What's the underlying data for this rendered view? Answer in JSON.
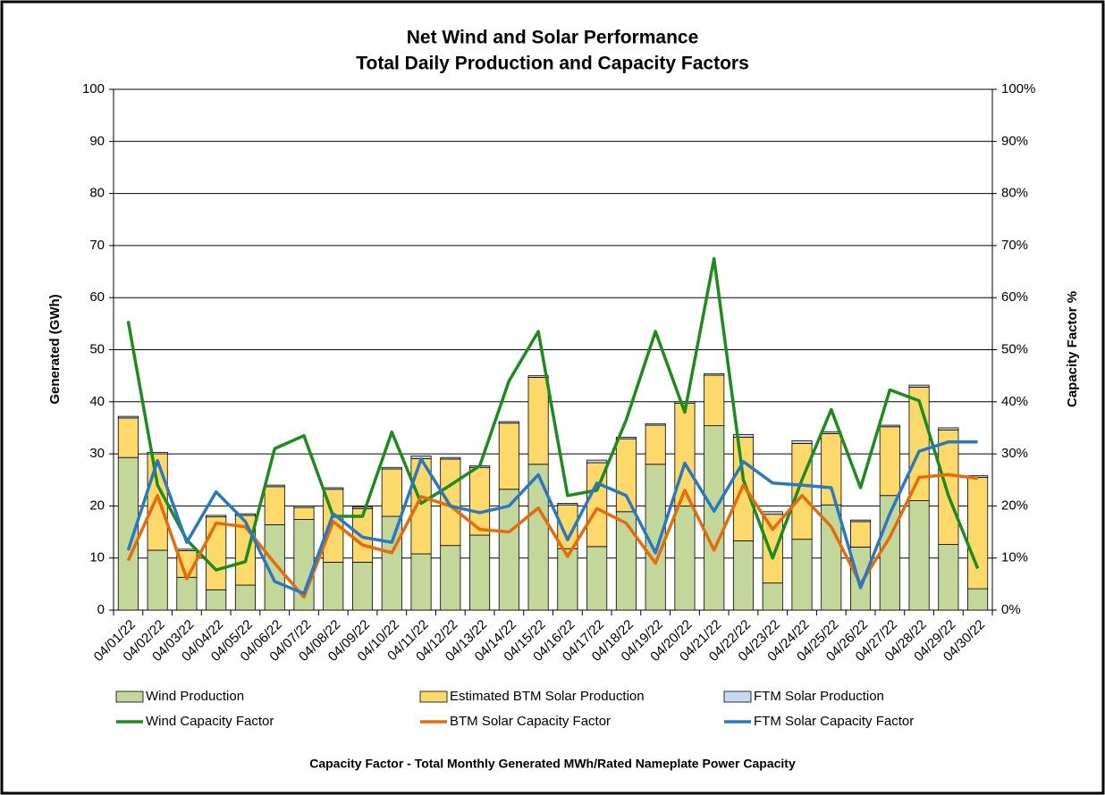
{
  "chart_data": {
    "type": "bar",
    "title": "Net Wind and Solar Performance",
    "subtitle": "Total Daily Production and Capacity Factors",
    "y_label": "Generated (GWh)",
    "y2_label": "Capacity Factor %",
    "note": "Capacity Factor  - Total Monthly Generated MWh/Rated Nameplate Power Capacity",
    "categories": [
      "04/01/22",
      "04/02/22",
      "04/03/22",
      "04/04/22",
      "04/05/22",
      "04/06/22",
      "04/07/22",
      "04/08/22",
      "04/09/22",
      "04/10/22",
      "04/11/22",
      "04/12/22",
      "04/13/22",
      "04/14/22",
      "04/15/22",
      "04/16/22",
      "04/17/22",
      "04/18/22",
      "04/19/22",
      "04/20/22",
      "04/21/22",
      "04/22/22",
      "04/23/22",
      "04/24/22",
      "04/25/22",
      "04/26/22",
      "04/27/22",
      "04/28/22",
      "04/29/22",
      "04/30/22"
    ],
    "series": [
      {
        "name": "Wind Production",
        "type": "bar",
        "color": "#c4d79b",
        "values": [
          29.3,
          11.5,
          6.3,
          3.9,
          4.8,
          16.4,
          17.4,
          9.2,
          9.2,
          18,
          10.8,
          12.4,
          14.4,
          23.2,
          28,
          11.8,
          12.2,
          18.9,
          28,
          20,
          35.4,
          13.3,
          5.2,
          13.6,
          20.2,
          12.1,
          22,
          21,
          12.6,
          4.1
        ]
      },
      {
        "name": "Estimated BTM Solar Production",
        "type": "bar",
        "color": "#fcd96a",
        "values": [
          7.6,
          18.5,
          5.1,
          14,
          13.4,
          7.3,
          2.3,
          14,
          10.3,
          9.1,
          18.3,
          16.6,
          13,
          12.7,
          16.7,
          8.4,
          16.1,
          14,
          7.5,
          19.7,
          9.7,
          19.9,
          13.2,
          18.4,
          13.7,
          4.9,
          13.2,
          21.8,
          22,
          21.4
        ]
      },
      {
        "name": "FTM Solar Production",
        "type": "bar",
        "color": "#c5d9f1",
        "values": [
          0.3,
          0.3,
          0.3,
          0.3,
          0.3,
          0.3,
          0.3,
          0.3,
          0.3,
          0.3,
          0.5,
          0.3,
          0.3,
          0.3,
          0.3,
          0.3,
          0.5,
          0.3,
          0.3,
          0.3,
          0.3,
          0.5,
          0.5,
          0.5,
          0.3,
          0.3,
          0.3,
          0.4,
          0.4,
          0.3
        ]
      },
      {
        "name": "Wind Capacity Factor",
        "type": "line",
        "axis": "y2",
        "color": "#1f8a1f",
        "values": [
          55.5,
          24,
          13.5,
          7.7,
          9.3,
          31,
          33.5,
          18,
          18,
          34.2,
          20.5,
          24,
          27.7,
          44,
          53.5,
          22,
          23,
          36.5,
          53.5,
          38,
          67.5,
          25,
          10,
          25,
          38.5,
          23.5,
          42.3,
          40.2,
          22,
          8
        ]
      },
      {
        "name": "BTM Solar Capacity Factor",
        "type": "line",
        "axis": "y2",
        "color": "#e46c0a",
        "values": [
          9.5,
          22,
          6,
          16.7,
          16,
          9,
          2.5,
          17,
          12.5,
          11,
          21.8,
          20,
          15.5,
          15,
          19.6,
          10.3,
          19.5,
          16.7,
          9,
          23,
          11.5,
          24,
          15.5,
          22,
          16,
          5,
          14,
          25.5,
          26,
          25.3
        ]
      },
      {
        "name": "FTM Solar Capacity Factor",
        "type": "line",
        "axis": "y2",
        "color": "#2a78c0",
        "values": [
          11.5,
          28.7,
          13,
          22.7,
          17,
          5.5,
          3.2,
          18.5,
          14,
          13,
          29,
          20,
          18.7,
          20,
          26,
          13.5,
          24.4,
          22,
          11,
          28.2,
          19,
          28.5,
          24.4,
          24,
          23.5,
          4.3,
          18.5,
          30.5,
          32.3,
          32.3
        ]
      }
    ],
    "ylim": [
      0,
      100
    ],
    "yticks": [
      0,
      10,
      20,
      30,
      40,
      50,
      60,
      70,
      80,
      90,
      100
    ],
    "y2lim": [
      0,
      100
    ],
    "y2ticks": [
      {
        "value": 0,
        "label": "0%"
      },
      {
        "value": 10,
        "label": "10%"
      },
      {
        "value": 20,
        "label": "20%"
      },
      {
        "value": 30,
        "label": "30%"
      },
      {
        "value": 40,
        "label": "40%"
      },
      {
        "value": 50,
        "label": "50%"
      },
      {
        "value": 60,
        "label": "60%"
      },
      {
        "value": 70,
        "label": "70%"
      },
      {
        "value": 80,
        "label": "80%"
      },
      {
        "value": 90,
        "label": "90%"
      },
      {
        "value": 100,
        "label": "100%"
      }
    ],
    "grid": true
  }
}
